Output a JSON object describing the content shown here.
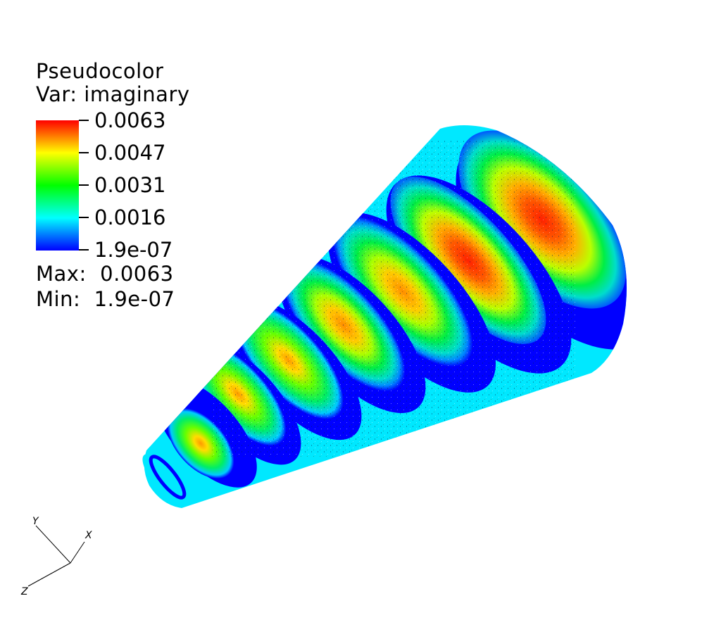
{
  "legend": {
    "title": "Pseudocolor",
    "variable": "Var: imaginary",
    "ticks": [
      "0.0063",
      "0.0047",
      "0.0031",
      "0.0016",
      "1.9e-07"
    ],
    "max_label": "Max:  0.0063",
    "min_label": "Min:  1.9e-07",
    "colormap": [
      "#0000ff",
      "#00ffff",
      "#00ff00",
      "#ffff00",
      "#ff0000"
    ]
  },
  "axes": {
    "x": "X",
    "y": "Y",
    "z": "Z"
  },
  "scene": {
    "object": "cone",
    "band_count": 8,
    "colors": {
      "blue": "#0000ff",
      "cyan": "#00ffff",
      "green": "#00ff00",
      "yellow": "#ffff00",
      "orange": "#ff9900",
      "red": "#ff1a00"
    }
  }
}
